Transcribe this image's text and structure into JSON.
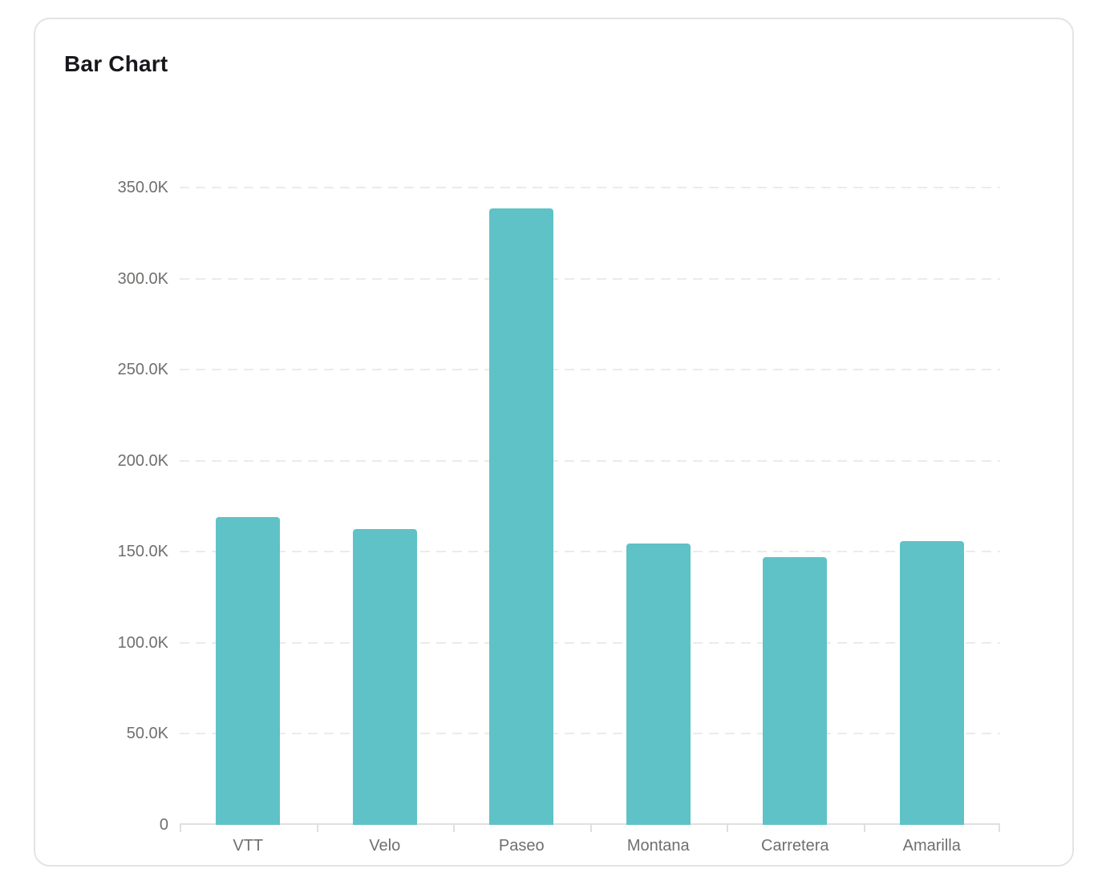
{
  "card": {
    "title": "Bar Chart"
  },
  "chart_data": {
    "type": "bar",
    "title": "Bar Chart",
    "categories": [
      "VTT",
      "Velo",
      "Paseo",
      "Montana",
      "Carretera",
      "Amarilla"
    ],
    "values": [
      169100,
      162400,
      338600,
      154500,
      147000,
      155800
    ],
    "xlabel": "",
    "ylabel": "",
    "ylim": [
      0,
      350000
    ],
    "y_ticks": [
      {
        "value": 0,
        "label": "0"
      },
      {
        "value": 50000,
        "label": "50.0K"
      },
      {
        "value": 100000,
        "label": "100.0K"
      },
      {
        "value": 150000,
        "label": "150.0K"
      },
      {
        "value": 200000,
        "label": "200.0K"
      },
      {
        "value": 250000,
        "label": "250.0K"
      },
      {
        "value": 300000,
        "label": "300.0K"
      },
      {
        "value": 350000,
        "label": "350.0K"
      }
    ],
    "grid": "horizontal-dashed",
    "legend": "none",
    "bar_color": "#5fc2c6"
  },
  "colors": {
    "bar": "#5fc2c6",
    "axis_label": "#6f6f6d",
    "gridline": "#ebebeb",
    "axis_line": "#dfdfdf",
    "card_border": "#e3e3e3",
    "title": "#17171c",
    "background": "#ffffff"
  }
}
